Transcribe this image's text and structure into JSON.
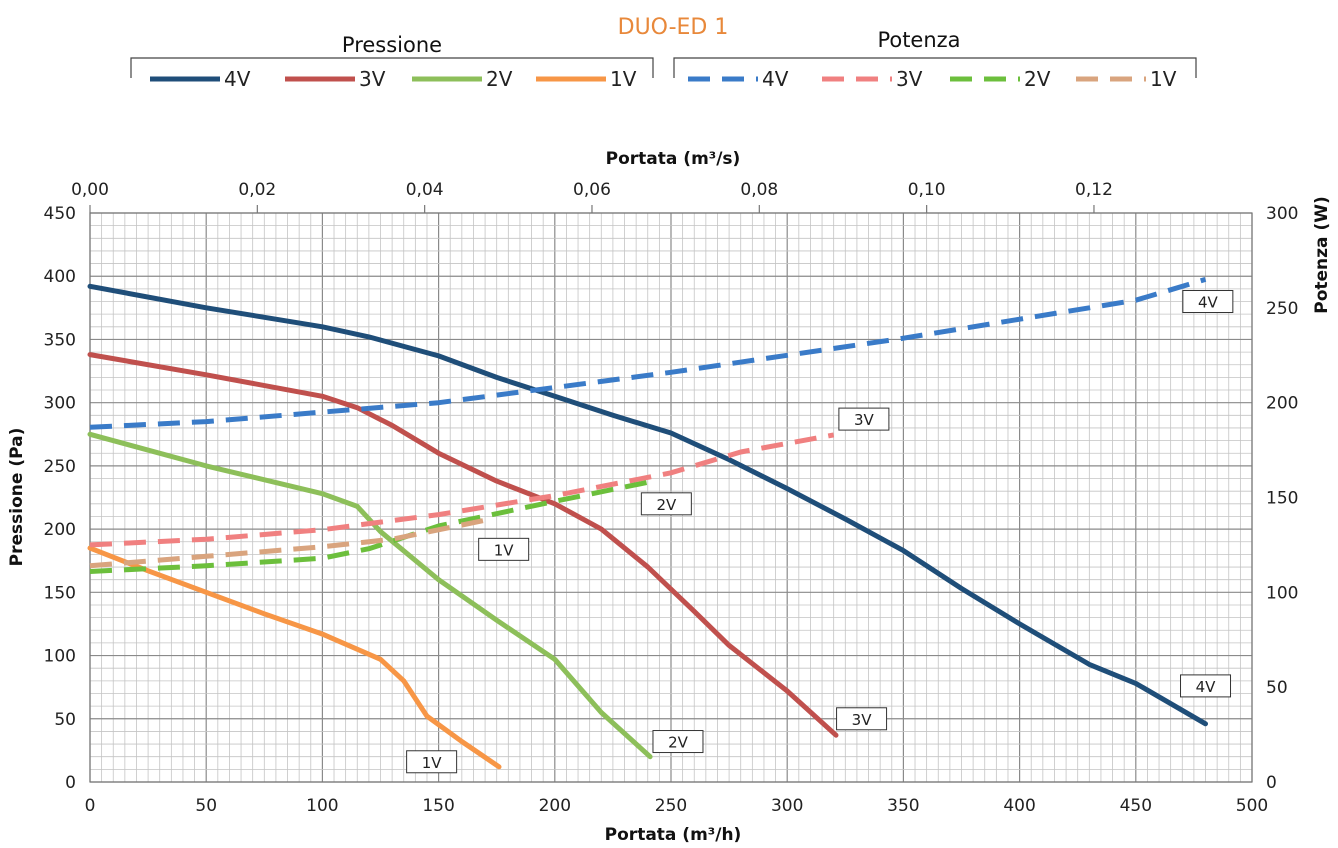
{
  "chart_data": {
    "type": "line",
    "title": "DUO-ED 1",
    "xlabel_bottom": "Portata (m³/h)",
    "xlabel_top": "Portata (m³/s)",
    "ylabel_left": "Pressione (Pa)",
    "ylabel_right": "Potenza (W)",
    "xlim": [
      0,
      500
    ],
    "ylim_left": [
      0,
      450
    ],
    "ylim_right": [
      0,
      300
    ],
    "x_ticks": [
      "0",
      "50",
      "100",
      "150",
      "200",
      "250",
      "300",
      "350",
      "400",
      "450",
      "500"
    ],
    "top_ticks": [
      "0,00",
      "0,02",
      "0,04",
      "0,06",
      "0,08",
      "0,10",
      "0,12"
    ],
    "y_left_ticks": [
      "0",
      "50",
      "100",
      "150",
      "200",
      "250",
      "300",
      "350",
      "400",
      "450"
    ],
    "y_right_ticks": [
      "0",
      "50",
      "100",
      "150",
      "200",
      "250",
      "300"
    ],
    "grid": true,
    "legend": {
      "pressure_group": "Pressione",
      "power_group": "Potenza",
      "position": "top"
    },
    "series": [
      {
        "name": "4V",
        "group": "pressure",
        "axis": "left",
        "color": "#1f4e79",
        "style": "solid",
        "points": [
          [
            0,
            392
          ],
          [
            50,
            375
          ],
          [
            100,
            360
          ],
          [
            120,
            352
          ],
          [
            150,
            337
          ],
          [
            175,
            320
          ],
          [
            200,
            305
          ],
          [
            225,
            290
          ],
          [
            250,
            276
          ],
          [
            275,
            255
          ],
          [
            300,
            232
          ],
          [
            325,
            208
          ],
          [
            350,
            183
          ],
          [
            375,
            153
          ],
          [
            400,
            125
          ],
          [
            430,
            93
          ],
          [
            450,
            78
          ],
          [
            480,
            46
          ]
        ]
      },
      {
        "name": "3V",
        "group": "pressure",
        "axis": "left",
        "color": "#c0504d",
        "style": "solid",
        "points": [
          [
            0,
            338
          ],
          [
            50,
            322
          ],
          [
            100,
            305
          ],
          [
            115,
            296
          ],
          [
            130,
            282
          ],
          [
            150,
            260
          ],
          [
            175,
            238
          ],
          [
            200,
            220
          ],
          [
            220,
            200
          ],
          [
            240,
            170
          ],
          [
            260,
            135
          ],
          [
            275,
            108
          ],
          [
            300,
            72
          ],
          [
            321,
            37
          ]
        ]
      },
      {
        "name": "2V",
        "group": "pressure",
        "axis": "left",
        "color": "#8dbf5a",
        "style": "solid",
        "points": [
          [
            0,
            275
          ],
          [
            50,
            250
          ],
          [
            100,
            228
          ],
          [
            115,
            218
          ],
          [
            125,
            198
          ],
          [
            150,
            160
          ],
          [
            175,
            128
          ],
          [
            200,
            97
          ],
          [
            220,
            55
          ],
          [
            241,
            20
          ]
        ]
      },
      {
        "name": "1V",
        "group": "pressure",
        "axis": "left",
        "color": "#f79646",
        "style": "solid",
        "points": [
          [
            0,
            185
          ],
          [
            25,
            167
          ],
          [
            50,
            150
          ],
          [
            75,
            133
          ],
          [
            100,
            117
          ],
          [
            125,
            97
          ],
          [
            135,
            80
          ],
          [
            145,
            52
          ],
          [
            160,
            32
          ],
          [
            176,
            12
          ]
        ]
      },
      {
        "name": "4V",
        "group": "power",
        "axis": "right",
        "color": "#3a7bc8",
        "style": "dashed",
        "points": [
          [
            0,
            187
          ],
          [
            50,
            190
          ],
          [
            100,
            195
          ],
          [
            150,
            200
          ],
          [
            200,
            208
          ],
          [
            250,
            216
          ],
          [
            300,
            225
          ],
          [
            350,
            234
          ],
          [
            400,
            244
          ],
          [
            450,
            254
          ],
          [
            480,
            265
          ]
        ]
      },
      {
        "name": "3V",
        "group": "power",
        "axis": "right",
        "color": "#f08080",
        "style": "dashed",
        "points": [
          [
            0,
            125
          ],
          [
            50,
            128
          ],
          [
            100,
            133
          ],
          [
            150,
            141
          ],
          [
            200,
            151
          ],
          [
            250,
            163
          ],
          [
            280,
            174
          ],
          [
            320,
            183
          ]
        ]
      },
      {
        "name": "2V",
        "group": "power",
        "axis": "right",
        "color": "#6cbf3c",
        "style": "dashed",
        "points": [
          [
            0,
            111
          ],
          [
            50,
            114
          ],
          [
            100,
            118
          ],
          [
            120,
            123
          ],
          [
            150,
            135
          ],
          [
            200,
            148
          ],
          [
            240,
            158
          ]
        ]
      },
      {
        "name": "1V",
        "group": "power",
        "axis": "right",
        "color": "#d9a47e",
        "style": "dashed",
        "points": [
          [
            0,
            114
          ],
          [
            50,
            119
          ],
          [
            100,
            124
          ],
          [
            130,
            128
          ],
          [
            170,
            138
          ]
        ]
      }
    ],
    "annotations": [
      {
        "label": "4V",
        "x": 480,
        "y_left": 76
      },
      {
        "label": "4V",
        "x": 481,
        "y_left": 380
      },
      {
        "label": "3V",
        "x": 332,
        "y_left": 50
      },
      {
        "label": "3V",
        "x": 333,
        "y_left": 287
      },
      {
        "label": "2V",
        "x": 253,
        "y_left": 32
      },
      {
        "label": "2V",
        "x": 248,
        "y_left": 220
      },
      {
        "label": "1V",
        "x": 147,
        "y_left": 16
      },
      {
        "label": "1V",
        "x": 178,
        "y_left": 184
      }
    ]
  }
}
